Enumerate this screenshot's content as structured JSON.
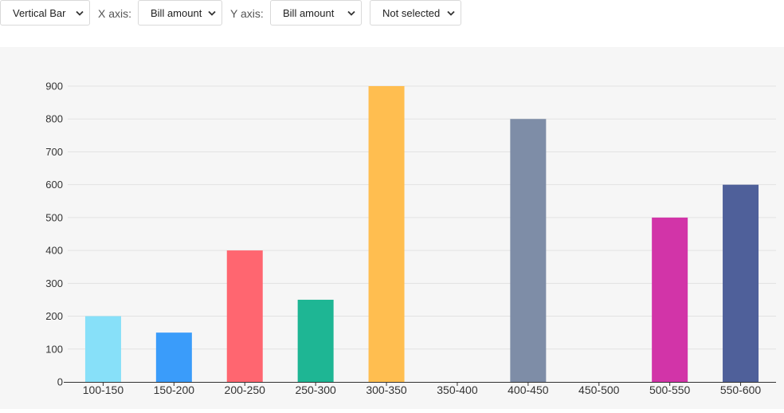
{
  "controls": {
    "chart_type": "Vertical Bar",
    "x_axis_label": "X axis:",
    "x_axis_value": "Bill amount",
    "y_axis_label": "Y axis:",
    "y_axis_value": "Bill amount",
    "group_value": "Not selected"
  },
  "icons": {
    "dropdown": "chevron-down-icon"
  },
  "chart_data": {
    "type": "bar",
    "categories": [
      "100-150",
      "150-200",
      "200-250",
      "250-300",
      "300-350",
      "350-400",
      "400-450",
      "450-500",
      "500-550",
      "550-600"
    ],
    "values": [
      200,
      150,
      400,
      250,
      900,
      0,
      800,
      0,
      500,
      600
    ],
    "colors": [
      "#87e0f9",
      "#3a9cfa",
      "#ff6670",
      "#1eb694",
      "#ffbe50",
      "#f6f6f6",
      "#7e8da7",
      "#f6f6f6",
      "#d234a8",
      "#4f609a"
    ],
    "ylim": [
      0,
      900
    ],
    "yticks": [
      0,
      100,
      200,
      300,
      400,
      500,
      600,
      700,
      800,
      900
    ],
    "grid": true,
    "title": "",
    "xlabel": "",
    "ylabel": ""
  }
}
